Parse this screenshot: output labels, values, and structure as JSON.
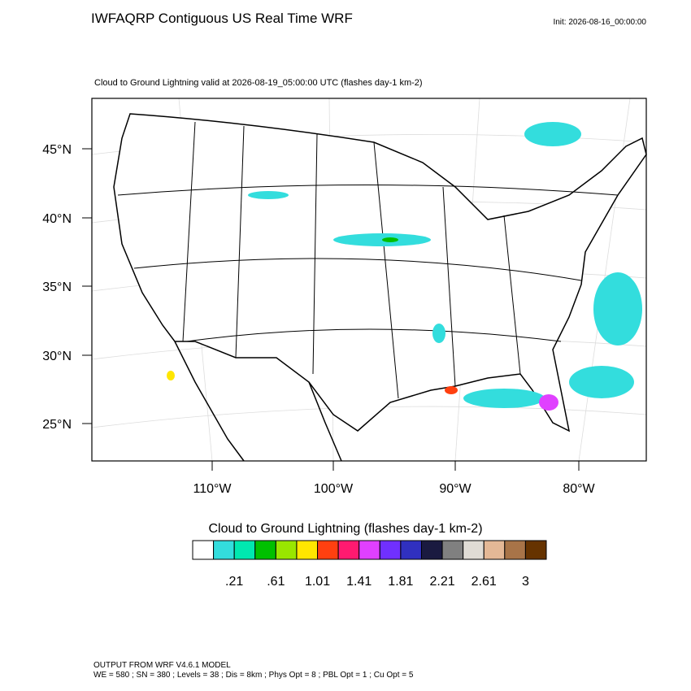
{
  "header": {
    "title": "IWFAQRP Contiguous US Real Time WRF",
    "init": "Init: 2026-08-16_00:00:00"
  },
  "map": {
    "subtitle": "Cloud to Ground Lightning valid at 2026-08-19_05:00:00 UTC   (flashes day-1 km-2)",
    "lat_labels": [
      "45°N",
      "40°N",
      "35°N",
      "30°N",
      "25°N"
    ],
    "lon_labels": [
      "110°W",
      "100°W",
      "90°W",
      "80°W"
    ]
  },
  "colorbar": {
    "title": "Cloud to Ground Lightning  (flashes day-1 km-2)",
    "colors": [
      "#ffffff",
      "#33dddd",
      "#00e8b0",
      "#00c000",
      "#99e600",
      "#ffe600",
      "#ff4010",
      "#ff1a70",
      "#e040ff",
      "#7030ff",
      "#3030c0",
      "#1a1a40",
      "#808080",
      "#e0dcd5",
      "#e4b896",
      "#a87448",
      "#663300"
    ],
    "labels": [
      ".21",
      ".61",
      "1.01",
      "1.41",
      "1.81",
      "2.21",
      "2.61",
      "3"
    ]
  },
  "footer": {
    "line1": "OUTPUT FROM WRF V4.6.1 MODEL",
    "line2": "WE = 580 ; SN = 380 ; Levels = 38 ; Dis = 8km ; Phys Opt = 8 ; PBL Opt = 1 ; Cu Opt = 5"
  }
}
